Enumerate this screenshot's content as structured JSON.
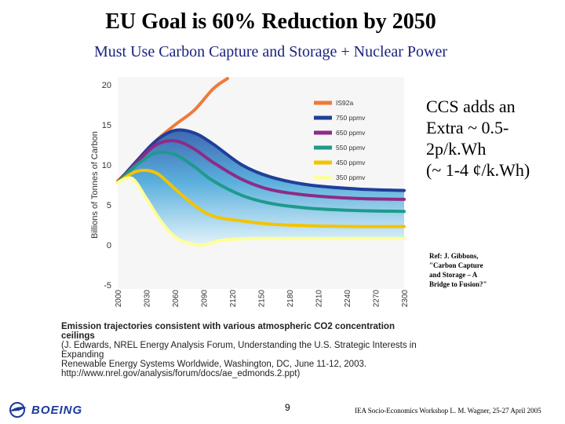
{
  "slide": {
    "title": "EU Goal is 60% Reduction by 2050",
    "subtitle": "Must Use Carbon Capture and Storage + Nuclear Power"
  },
  "side_note": {
    "lines": [
      "CCS adds an",
      "Extra ~ 0.5-",
      "2p/k.Wh",
      "(~ 1-4 ¢/k.Wh)"
    ]
  },
  "reference": {
    "lines": [
      "Ref: J. Gibbons,",
      "\"Carbon Capture",
      "and Storage – A",
      "Bridge to Fusion?\""
    ]
  },
  "caption": {
    "line1": "Emission trajectories consistent with various atmospheric CO2 concentration ceilings",
    "line2": "(J. Edwards, NREL Energy Analysis Forum, Understanding the U.S. Strategic Interests in Expanding",
    "line3": "Renewable Energy Systems Worldwide, Washington, DC, June 11-12, 2003.",
    "line4": "http://www.nrel.gov/analysis/forum/docs/ae_edmonds.2.ppt)"
  },
  "footer": {
    "logo_text": "BOEING",
    "page_number": "9",
    "event_text": "IEA Socio-Economics Workshop   L. M. Wagner, 25-27 April 2005"
  },
  "colors": {
    "IS92a": "#f07a3a",
    "750": "#1f3f9a",
    "650": "#8e2b86",
    "550": "#1f9a8c",
    "450": "#f2c400",
    "350": "#ffff9a"
  },
  "chart_data": {
    "type": "line",
    "title": "",
    "ylabel": "Billions of Tonnes of Carbon",
    "xlabel": "",
    "ylim": [
      -5,
      20
    ],
    "xlim": [
      2000,
      2300
    ],
    "yticks": [
      "20",
      "15",
      "10",
      "5",
      "0",
      "-5"
    ],
    "yticks_values": [
      20,
      15,
      10,
      5,
      0,
      -5
    ],
    "xticks": [
      "2000",
      "2030",
      "2060",
      "2090",
      "2120",
      "2150",
      "2180",
      "2210",
      "2240",
      "2270",
      "2300"
    ],
    "xticks_values": [
      2000,
      2030,
      2060,
      2090,
      2120,
      2150,
      2180,
      2210,
      2240,
      2270,
      2300
    ],
    "series": [
      {
        "name": "IS92a",
        "color_key": "IS92a",
        "x": [
          2000,
          2020,
          2040,
          2060,
          2080,
          2100,
          2115
        ],
        "y": [
          8.0,
          10.3,
          13.0,
          15.0,
          16.8,
          19.5,
          22
        ]
      },
      {
        "name": "750 ppmv",
        "color_key": "750",
        "x": [
          2000,
          2020,
          2040,
          2060,
          2080,
          2100,
          2130,
          2160,
          2200,
          2250,
          2300
        ],
        "y": [
          7.8,
          10.5,
          13.0,
          14.3,
          14.0,
          12.6,
          10.0,
          8.5,
          7.5,
          7.0,
          6.8
        ]
      },
      {
        "name": "650 ppmv",
        "color_key": "650",
        "x": [
          2000,
          2020,
          2040,
          2060,
          2080,
          2100,
          2130,
          2160,
          2200,
          2250,
          2300
        ],
        "y": [
          7.8,
          10.3,
          12.5,
          13.0,
          12.0,
          10.3,
          8.2,
          6.9,
          6.2,
          5.8,
          5.7
        ]
      },
      {
        "name": "550 ppmv",
        "color_key": "550",
        "x": [
          2000,
          2020,
          2040,
          2060,
          2080,
          2100,
          2130,
          2160,
          2200,
          2250,
          2300
        ],
        "y": [
          7.8,
          10.0,
          11.5,
          11.3,
          9.8,
          8.0,
          6.2,
          5.2,
          4.6,
          4.3,
          4.2
        ]
      },
      {
        "name": "450 ppmv",
        "color_key": "450",
        "x": [
          2000,
          2020,
          2040,
          2060,
          2080,
          2100,
          2130,
          2160,
          2200,
          2250,
          2300
        ],
        "y": [
          7.8,
          9.2,
          9.0,
          7.0,
          5.0,
          3.6,
          3.0,
          2.6,
          2.4,
          2.3,
          2.3
        ]
      },
      {
        "name": "350 ppmv",
        "color_key": "350",
        "x": [
          2000,
          2015,
          2030,
          2045,
          2060,
          2075,
          2090,
          2110,
          2140,
          2180,
          2240,
          2300
        ],
        "y": [
          7.8,
          8.3,
          5.8,
          3.0,
          1.0,
          0.2,
          0.0,
          0.6,
          0.8,
          0.8,
          0.8,
          0.8
        ]
      }
    ]
  }
}
